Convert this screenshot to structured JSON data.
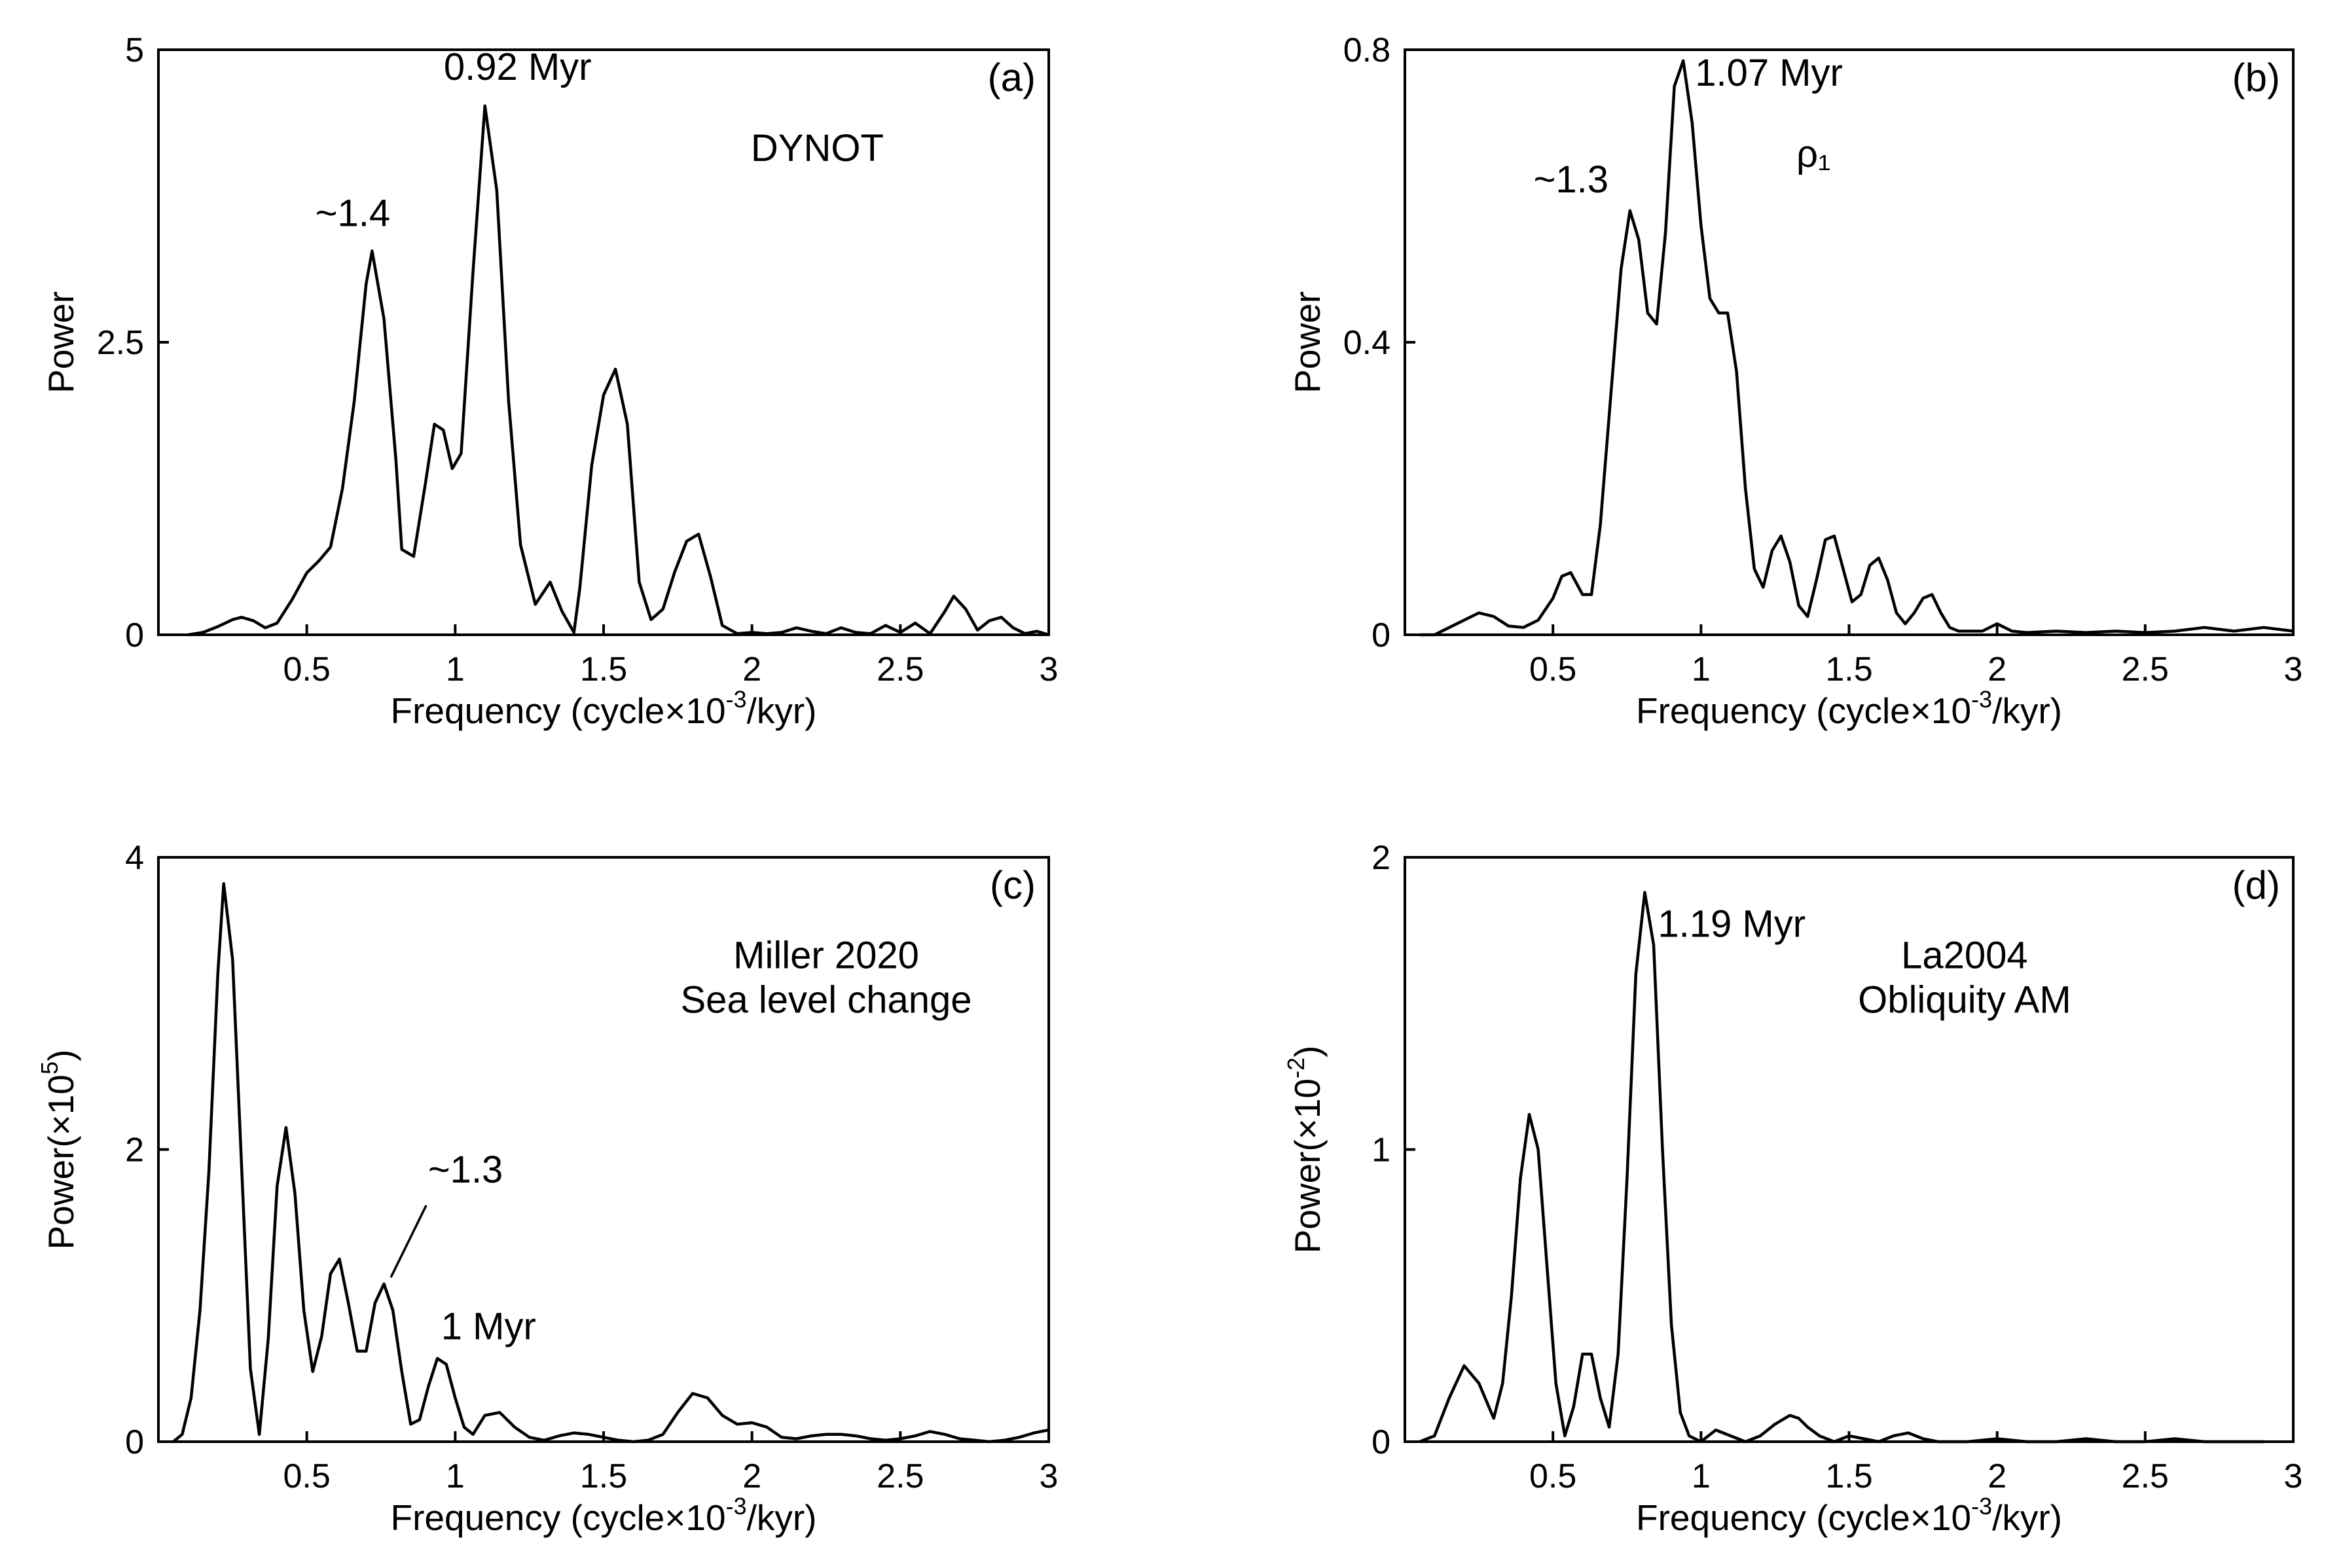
{
  "chart_data": [
    {
      "type": "line",
      "panel_label": "(a)",
      "inset_text": [
        "DYNOT"
      ],
      "xlabel": "Frequency (cycle×10",
      "xlabel_sup": "-3",
      "xlabel_tail": "/kyr)",
      "ylabel": "Power",
      "ylabel_sup": "",
      "ylabel_tail": "",
      "xlim": [
        0,
        3
      ],
      "ylim": [
        0,
        5
      ],
      "x_ticks": [
        0.5,
        1,
        1.5,
        2,
        2.5,
        3
      ],
      "x_tick_labels": [
        "0.5",
        "1",
        "1.5",
        "2",
        "2.5",
        "3"
      ],
      "y_ticks": [
        0,
        2.5,
        5
      ],
      "y_tick_labels": [
        "0",
        "2.5",
        "5"
      ],
      "annotations": [
        {
          "text": "0.92 Myr",
          "x": 1.1,
          "y": 4.52
        },
        {
          "text": "~1.4",
          "x": 0.71,
          "y": 3.27
        }
      ],
      "x": [
        0.1,
        0.15,
        0.2,
        0.25,
        0.28,
        0.32,
        0.36,
        0.4,
        0.45,
        0.5,
        0.54,
        0.58,
        0.62,
        0.66,
        0.7,
        0.72,
        0.76,
        0.8,
        0.82,
        0.86,
        0.9,
        0.93,
        0.96,
        0.99,
        1.02,
        1.06,
        1.1,
        1.14,
        1.18,
        1.22,
        1.27,
        1.32,
        1.36,
        1.4,
        1.42,
        1.46,
        1.5,
        1.54,
        1.58,
        1.62,
        1.66,
        1.7,
        1.74,
        1.78,
        1.82,
        1.86,
        1.9,
        1.95,
        2.0,
        2.05,
        2.1,
        2.15,
        2.2,
        2.25,
        2.3,
        2.35,
        2.4,
        2.45,
        2.5,
        2.55,
        2.6,
        2.65,
        2.68,
        2.72,
        2.76,
        2.8,
        2.84,
        2.88,
        2.92,
        2.96,
        3.0
      ],
      "values": [
        0,
        0.02,
        0.07,
        0.13,
        0.15,
        0.12,
        0.06,
        0.1,
        0.3,
        0.53,
        0.63,
        0.75,
        1.25,
        2.0,
        3.0,
        3.28,
        2.7,
        1.5,
        0.73,
        0.67,
        1.3,
        1.8,
        1.75,
        1.42,
        1.55,
        3.1,
        4.52,
        3.8,
        2.0,
        0.77,
        0.26,
        0.45,
        0.2,
        0.02,
        0.4,
        1.45,
        2.05,
        2.27,
        1.8,
        0.45,
        0.13,
        0.22,
        0.54,
        0.8,
        0.86,
        0.5,
        0.08,
        0.01,
        0.02,
        0.01,
        0.02,
        0.06,
        0.03,
        0.01,
        0.06,
        0.02,
        0.01,
        0.08,
        0.02,
        0.1,
        0.01,
        0.2,
        0.33,
        0.22,
        0.04,
        0.12,
        0.15,
        0.06,
        0.01,
        0.03,
        0.0
      ]
    },
    {
      "type": "line",
      "panel_label": "(b)",
      "inset_text": [
        "ρ₁"
      ],
      "xlabel": "Frequency (cycle×10",
      "xlabel_sup": "-3",
      "xlabel_tail": "/kyr)",
      "ylabel": "Power",
      "ylabel_sup": "",
      "ylabel_tail": "",
      "xlim": [
        0,
        3
      ],
      "ylim": [
        0,
        0.8
      ],
      "x_ticks": [
        0.5,
        1,
        1.5,
        2,
        2.5,
        3
      ],
      "x_tick_labels": [
        "0.5",
        "1",
        "1.5",
        "2",
        "2.5",
        "3"
      ],
      "y_ticks": [
        0,
        0.4,
        0.8
      ],
      "y_tick_labels": [
        "0",
        "0.4",
        "0.8"
      ],
      "annotations": [
        {
          "text": "1.07 Myr",
          "x": 0.94,
          "y": 0.785
        },
        {
          "text": "~1.3",
          "x": 0.76,
          "y": 0.58
        }
      ],
      "x": [
        0.05,
        0.1,
        0.15,
        0.2,
        0.25,
        0.3,
        0.35,
        0.4,
        0.45,
        0.5,
        0.53,
        0.56,
        0.6,
        0.63,
        0.66,
        0.7,
        0.73,
        0.76,
        0.79,
        0.82,
        0.85,
        0.88,
        0.91,
        0.94,
        0.97,
        1.0,
        1.03,
        1.06,
        1.09,
        1.12,
        1.15,
        1.18,
        1.21,
        1.24,
        1.27,
        1.3,
        1.33,
        1.36,
        1.39,
        1.42,
        1.45,
        1.48,
        1.51,
        1.54,
        1.57,
        1.6,
        1.63,
        1.66,
        1.69,
        1.72,
        1.75,
        1.78,
        1.81,
        1.84,
        1.87,
        1.9,
        1.95,
        2.0,
        2.05,
        2.1,
        2.2,
        2.3,
        2.4,
        2.5,
        2.6,
        2.7,
        2.8,
        2.9,
        3.0
      ],
      "values": [
        0,
        0.0,
        0.01,
        0.02,
        0.03,
        0.025,
        0.012,
        0.01,
        0.02,
        0.05,
        0.08,
        0.085,
        0.055,
        0.055,
        0.15,
        0.35,
        0.5,
        0.58,
        0.54,
        0.44,
        0.425,
        0.55,
        0.75,
        0.785,
        0.7,
        0.56,
        0.46,
        0.44,
        0.44,
        0.36,
        0.2,
        0.09,
        0.065,
        0.115,
        0.135,
        0.1,
        0.04,
        0.025,
        0.075,
        0.13,
        0.135,
        0.09,
        0.045,
        0.055,
        0.095,
        0.105,
        0.075,
        0.03,
        0.015,
        0.03,
        0.05,
        0.055,
        0.03,
        0.01,
        0.005,
        0.005,
        0.005,
        0.015,
        0.005,
        0.003,
        0.005,
        0.003,
        0.005,
        0.003,
        0.005,
        0.01,
        0.005,
        0.01,
        0.005
      ]
    },
    {
      "type": "line",
      "panel_label": "(c)",
      "inset_text": [
        "Miller 2020",
        "Sea level change"
      ],
      "xlabel": "Frequency (cycle×10",
      "xlabel_sup": "-3",
      "xlabel_tail": "/kyr)",
      "ylabel": "Power(×10",
      "ylabel_sup": "5",
      "ylabel_tail": ")",
      "xlim": [
        0,
        3
      ],
      "ylim": [
        0,
        4
      ],
      "x_ticks": [
        0.5,
        1,
        1.5,
        2,
        2.5,
        3
      ],
      "x_tick_labels": [
        "0.5",
        "1",
        "1.5",
        "2",
        "2.5",
        "3"
      ],
      "y_ticks": [
        0,
        2,
        4
      ],
      "y_tick_labels": [
        "0",
        "2",
        "4"
      ],
      "annotations": [
        {
          "text": "~1.3",
          "x": 0.77,
          "y": 1.08
        },
        {
          "text": "1 Myr",
          "x": 0.98,
          "y": 0.58
        }
      ],
      "x": [
        0.05,
        0.08,
        0.11,
        0.14,
        0.17,
        0.2,
        0.22,
        0.25,
        0.28,
        0.31,
        0.34,
        0.37,
        0.4,
        0.43,
        0.46,
        0.49,
        0.52,
        0.55,
        0.58,
        0.61,
        0.64,
        0.67,
        0.7,
        0.73,
        0.76,
        0.79,
        0.82,
        0.85,
        0.88,
        0.91,
        0.94,
        0.97,
        1.0,
        1.03,
        1.06,
        1.1,
        1.15,
        1.2,
        1.25,
        1.3,
        1.35,
        1.4,
        1.45,
        1.5,
        1.55,
        1.6,
        1.65,
        1.7,
        1.75,
        1.8,
        1.85,
        1.9,
        1.95,
        2.0,
        2.05,
        2.1,
        2.15,
        2.2,
        2.25,
        2.3,
        2.35,
        2.4,
        2.45,
        2.5,
        2.55,
        2.6,
        2.65,
        2.7,
        2.75,
        2.8,
        2.85,
        2.9,
        2.95,
        3.0
      ],
      "values": [
        0,
        0.05,
        0.3,
        0.9,
        1.85,
        3.2,
        3.82,
        3.3,
        1.9,
        0.5,
        0.05,
        0.7,
        1.75,
        2.15,
        1.7,
        0.9,
        0.48,
        0.72,
        1.15,
        1.25,
        0.95,
        0.62,
        0.62,
        0.95,
        1.08,
        0.9,
        0.48,
        0.12,
        0.15,
        0.38,
        0.57,
        0.53,
        0.3,
        0.1,
        0.05,
        0.18,
        0.2,
        0.1,
        0.03,
        0.01,
        0.04,
        0.06,
        0.05,
        0.03,
        0.01,
        0.0,
        0.01,
        0.05,
        0.2,
        0.33,
        0.3,
        0.18,
        0.12,
        0.13,
        0.1,
        0.03,
        0.02,
        0.04,
        0.05,
        0.05,
        0.04,
        0.02,
        0.01,
        0.02,
        0.04,
        0.07,
        0.05,
        0.02,
        0.01,
        0.0,
        0.01,
        0.03,
        0.06,
        0.08
      ]
    },
    {
      "type": "line",
      "panel_label": "(d)",
      "inset_text": [
        "La2004",
        "Obliquity AM"
      ],
      "xlabel": "Frequency (cycle×10",
      "xlabel_sup": "-3",
      "xlabel_tail": "/kyr)",
      "ylabel": "Power(×10",
      "ylabel_sup": "-2",
      "ylabel_tail": ")",
      "xlim": [
        0,
        3
      ],
      "ylim": [
        0,
        2
      ],
      "x_ticks": [
        0.5,
        1,
        1.5,
        2,
        2.5,
        3
      ],
      "x_tick_labels": [
        "0.5",
        "1",
        "1.5",
        "2",
        "2.5",
        "3"
      ],
      "y_ticks": [
        0,
        1,
        2
      ],
      "y_tick_labels": [
        "0",
        "1",
        "2"
      ],
      "annotations": [
        {
          "text": "1.19 Myr",
          "x": 0.83,
          "y": 1.88
        }
      ],
      "x": [
        0.05,
        0.1,
        0.15,
        0.2,
        0.25,
        0.3,
        0.33,
        0.36,
        0.39,
        0.42,
        0.45,
        0.48,
        0.51,
        0.54,
        0.57,
        0.6,
        0.63,
        0.66,
        0.69,
        0.72,
        0.75,
        0.78,
        0.81,
        0.84,
        0.87,
        0.9,
        0.93,
        0.96,
        1.0,
        1.05,
        1.1,
        1.15,
        1.2,
        1.25,
        1.3,
        1.33,
        1.36,
        1.4,
        1.45,
        1.5,
        1.55,
        1.6,
        1.65,
        1.7,
        1.75,
        1.8,
        1.9,
        2.0,
        2.1,
        2.2,
        2.3,
        2.4,
        2.5,
        2.6,
        2.7,
        2.8,
        2.9
      ],
      "values": [
        0,
        0.02,
        0.15,
        0.26,
        0.2,
        0.08,
        0.2,
        0.5,
        0.9,
        1.12,
        1.0,
        0.6,
        0.2,
        0.02,
        0.12,
        0.3,
        0.3,
        0.15,
        0.05,
        0.3,
        0.9,
        1.6,
        1.88,
        1.7,
        1.0,
        0.4,
        0.1,
        0.02,
        0.0,
        0.04,
        0.02,
        0.0,
        0.02,
        0.06,
        0.09,
        0.08,
        0.05,
        0.02,
        0.0,
        0.02,
        0.01,
        0.0,
        0.02,
        0.03,
        0.01,
        0.0,
        0.0,
        0.01,
        0.0,
        0.0,
        0.01,
        0.0,
        0.0,
        0.01,
        0.0,
        0.0,
        0.0
      ]
    }
  ]
}
